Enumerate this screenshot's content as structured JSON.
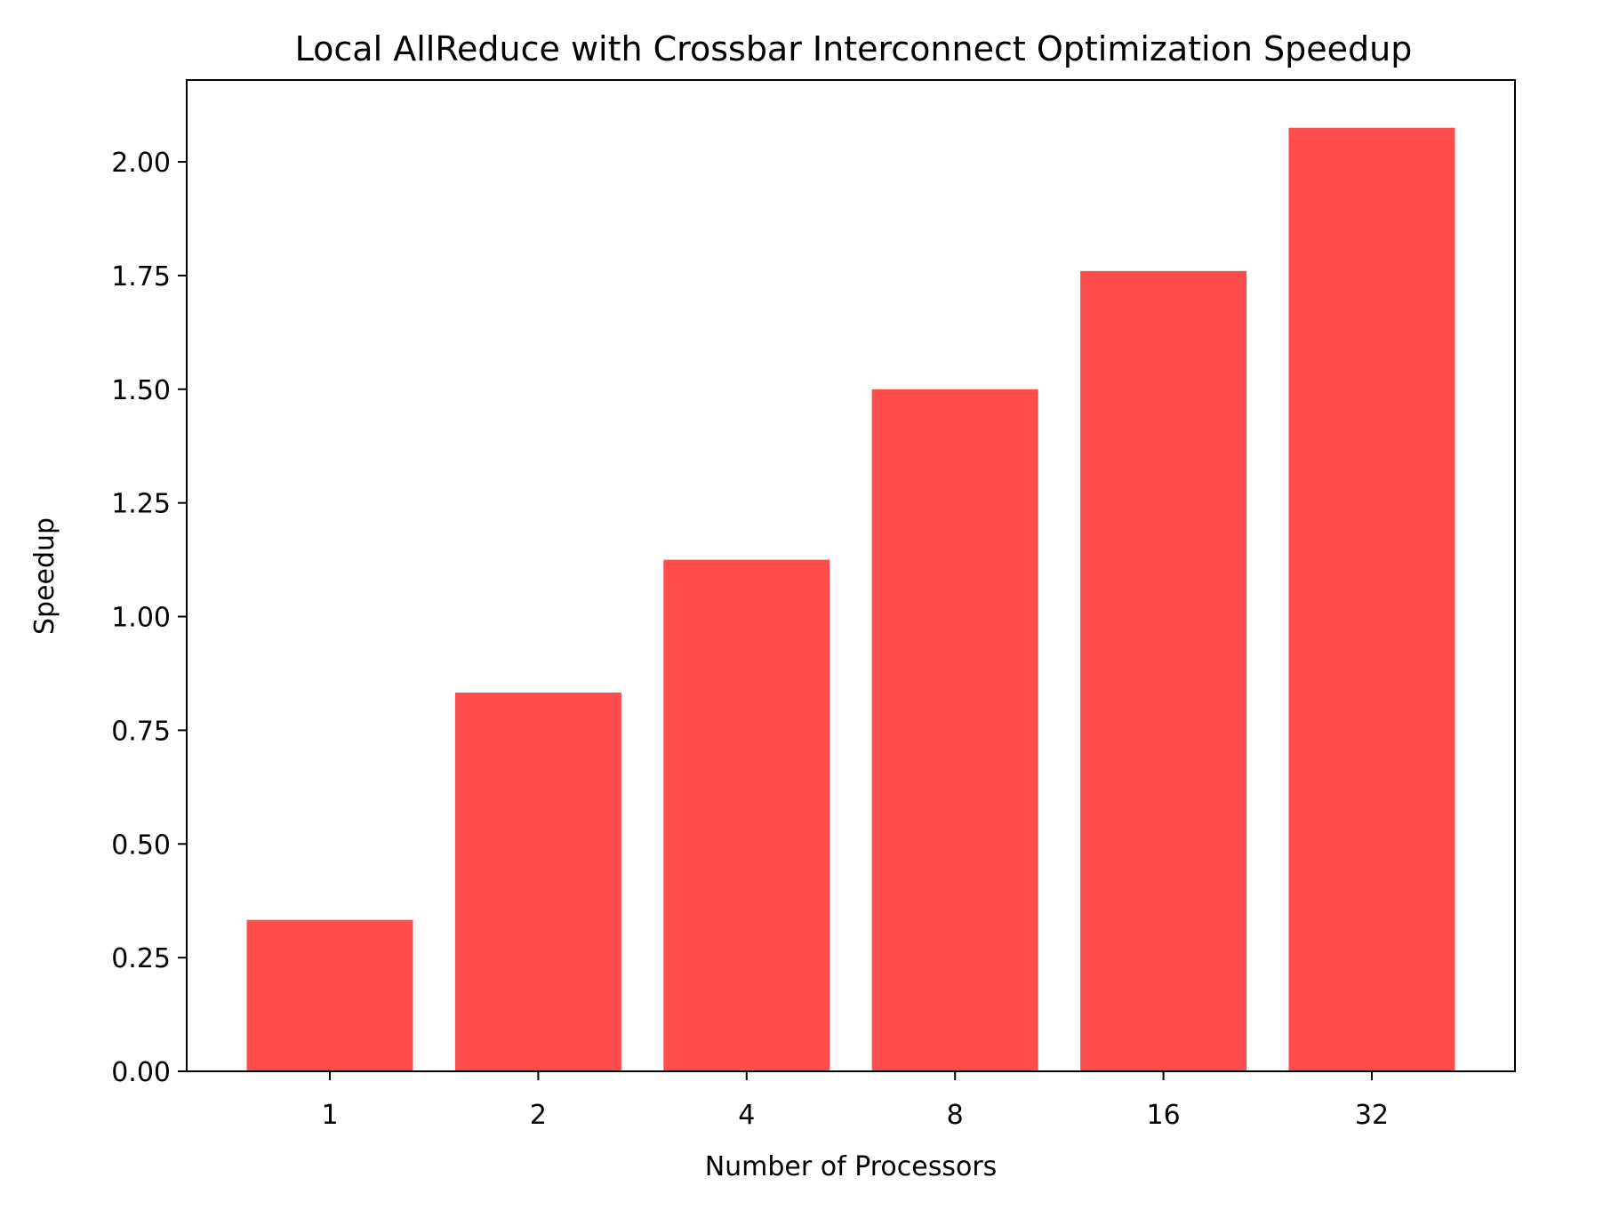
{
  "chart_data": {
    "type": "bar",
    "title": "Local AllReduce with Crossbar Interconnect Optimization Speedup",
    "xlabel": "Number of Processors",
    "ylabel": "Speedup",
    "categories": [
      "1",
      "2",
      "4",
      "8",
      "16",
      "32"
    ],
    "values": [
      0.333,
      0.833,
      1.125,
      1.5,
      1.76,
      2.075
    ],
    "ylim": [
      0,
      2.18
    ],
    "yticks": [
      "0.00",
      "0.25",
      "0.50",
      "0.75",
      "1.00",
      "1.25",
      "1.50",
      "1.75",
      "2.00"
    ],
    "bar_color": "#ff4d4d",
    "grid": false,
    "legend": "none"
  }
}
